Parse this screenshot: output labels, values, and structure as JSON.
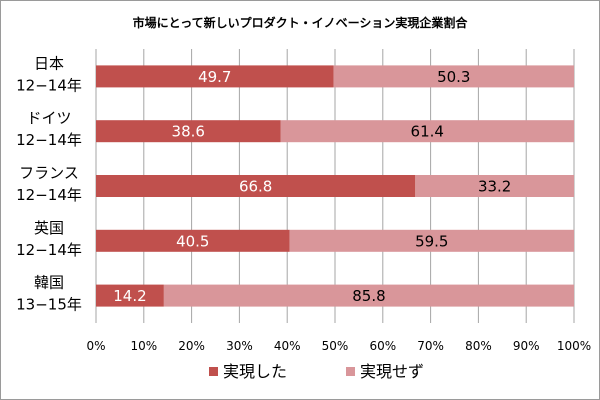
{
  "chart_data": {
    "type": "bar",
    "orientation": "horizontal",
    "stacked": true,
    "title": "市場にとって新しいプロダクト・イノベーション実現企業割合",
    "categories": [
      [
        "日本",
        "12−14年"
      ],
      [
        "ドイツ",
        "12−14年"
      ],
      [
        "フランス",
        "12−14年"
      ],
      [
        "英国",
        "12−14年"
      ],
      [
        "韓国",
        "13−15年"
      ]
    ],
    "series": [
      {
        "name": "実現した",
        "values": [
          49.7,
          38.6,
          66.8,
          40.5,
          14.2
        ],
        "color": "#c0504d",
        "label_color": "#ffffff"
      },
      {
        "name": "実現せず",
        "values": [
          50.3,
          61.4,
          33.2,
          59.5,
          85.8
        ],
        "color": "#d9969a",
        "label_color": "#000000"
      }
    ],
    "xlim": [
      0,
      100
    ],
    "x_ticks": [
      "0%",
      "10%",
      "20%",
      "30%",
      "40%",
      "50%",
      "60%",
      "70%",
      "80%",
      "90%",
      "100%"
    ],
    "x_tick_values": [
      0,
      10,
      20,
      30,
      40,
      50,
      60,
      70,
      80,
      90,
      100
    ],
    "grid": "vertical",
    "legend_position": "bottom"
  }
}
